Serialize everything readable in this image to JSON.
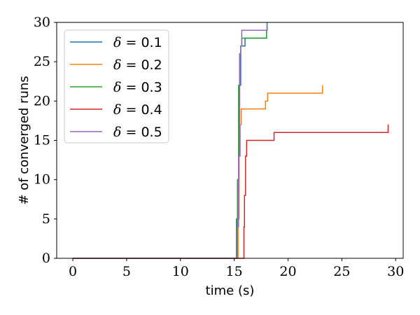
{
  "chart_data": {
    "type": "line",
    "step": "post",
    "xlabel": "time (s)",
    "ylabel": "# of converged runs",
    "xlim": [
      -1.5,
      30.7
    ],
    "ylim": [
      0,
      30
    ],
    "xticks": [
      0,
      5,
      10,
      15,
      20,
      25,
      30
    ],
    "yticks": [
      0,
      5,
      10,
      15,
      20,
      25,
      30
    ],
    "xtick_labels": [
      "0",
      "5",
      "10",
      "15",
      "20",
      "25",
      "30"
    ],
    "ytick_labels": [
      "0",
      "5",
      "10",
      "15",
      "20",
      "25",
      "30"
    ],
    "grid": false,
    "legend_position": "top-left",
    "series": [
      {
        "name": "δ = 0.1",
        "symbol": "δ",
        "eq": " = ",
        "value": "0.1",
        "color": "#1f77b4",
        "x": [
          0,
          15.15,
          15.3,
          15.45,
          15.6,
          16.0,
          17.2,
          18.0,
          18.05
        ],
        "y": [
          0,
          0,
          10,
          22,
          27,
          28,
          28,
          29,
          30
        ]
      },
      {
        "name": "δ = 0.2",
        "symbol": "δ",
        "eq": " = ",
        "value": "0.2",
        "color": "#ff7f0e",
        "x": [
          0,
          15.25,
          15.35,
          15.45,
          15.55,
          15.65,
          17.9,
          18.1,
          20.5,
          23.2,
          23.2
        ],
        "y": [
          0,
          0,
          5,
          13,
          17,
          19,
          20,
          21,
          21,
          21,
          22
        ]
      },
      {
        "name": "δ = 0.3",
        "symbol": "δ",
        "eq": " = ",
        "value": "0.3",
        "color": "#2ca02c",
        "x": [
          0,
          15.1,
          15.2,
          15.3,
          15.4,
          15.5,
          15.6,
          15.7,
          18.0,
          18.05
        ],
        "y": [
          0,
          0,
          5,
          10,
          22,
          26,
          27,
          28,
          29,
          30
        ]
      },
      {
        "name": "δ = 0.4",
        "symbol": "δ",
        "eq": " = ",
        "value": "0.4",
        "color": "#d62728",
        "x": [
          0,
          15.8,
          15.9,
          15.95,
          16.05,
          16.15,
          18.7,
          25.0,
          29.3,
          29.3
        ],
        "y": [
          0,
          0,
          4,
          8,
          13,
          15,
          16,
          16,
          16,
          17
        ]
      },
      {
        "name": "δ = 0.5",
        "symbol": "δ",
        "eq": " = ",
        "value": "0.5",
        "color": "#9467bd",
        "x": [
          0,
          15.2,
          15.3,
          15.4,
          15.5,
          15.6,
          15.7,
          17.5,
          18.0,
          18.05
        ],
        "y": [
          0,
          0,
          4,
          13,
          26,
          27,
          29,
          29,
          29,
          30
        ]
      }
    ]
  }
}
